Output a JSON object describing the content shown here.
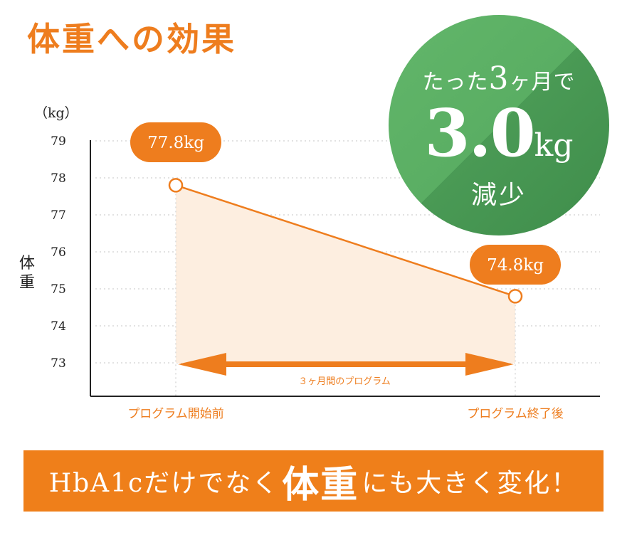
{
  "title": "体重への効果",
  "chart_data": {
    "type": "line",
    "ylabel": "体重",
    "yunit": "（kg）",
    "ylim": [
      73,
      79
    ],
    "yticks": [
      79,
      78,
      77,
      76,
      75,
      74,
      73
    ],
    "categories": [
      "プログラム開始前",
      "プログラム終了後"
    ],
    "values": [
      77.8,
      74.8
    ],
    "data_labels": [
      "77.8kg",
      "74.8kg"
    ],
    "annotation": "３ヶ月間のプログラム",
    "grid": true,
    "area_fill": true
  },
  "badge": {
    "line1_pre": "たった",
    "line1_num": "3",
    "line1_post": "ヶ月で",
    "value": "3.0",
    "unit": "kg",
    "line3": "減少"
  },
  "banner": {
    "pre": "HbA1cだけでなく",
    "emph": "体重",
    "post": "にも大きく変化！"
  },
  "colors": {
    "accent": "#ee7d1e",
    "badge_green": "#52a75d",
    "area_fill": "#fdeee0",
    "grid": "#d9d9d9"
  }
}
